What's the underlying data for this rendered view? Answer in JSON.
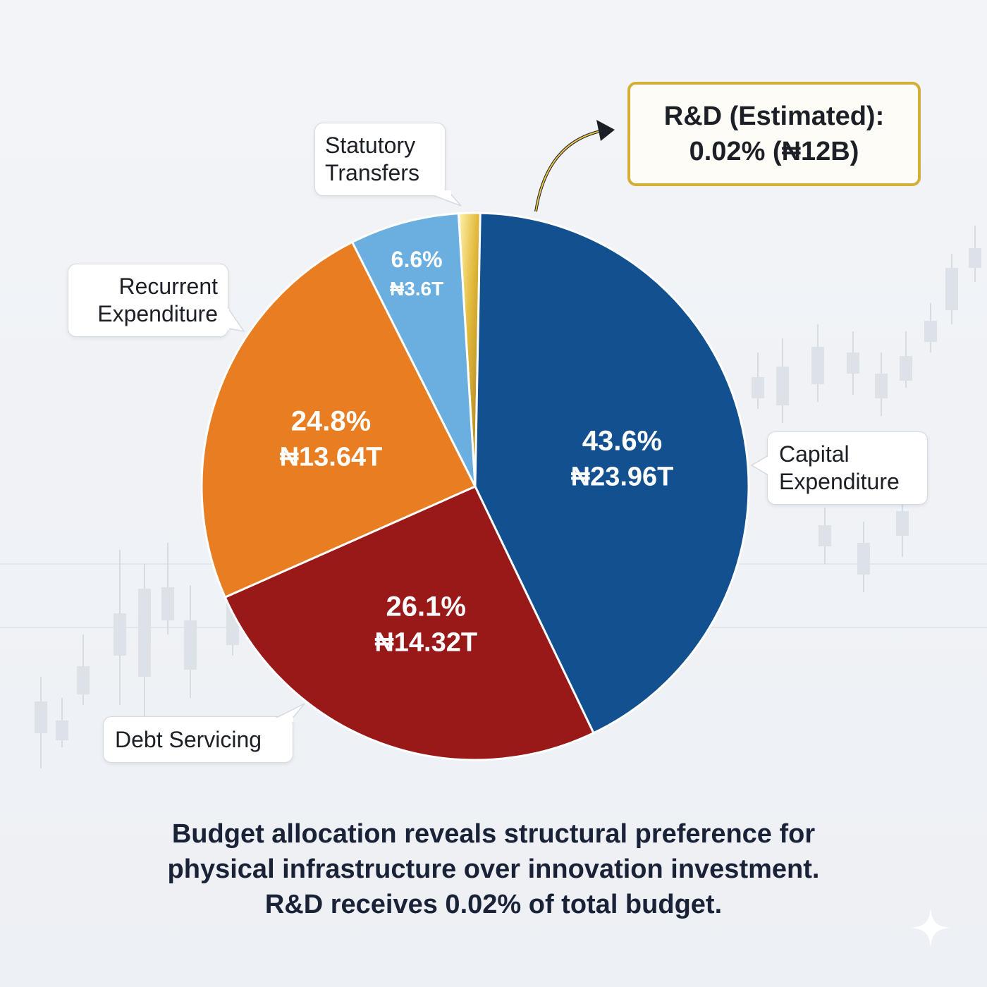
{
  "chart_data": {
    "type": "pie",
    "slices": [
      {
        "label": "Capital Expenditure",
        "label_lines": [
          "Capital",
          "Expenditure"
        ],
        "percent": 43.6,
        "percent_label": "43.6%",
        "value_label": "₦23.96T",
        "color": "#12508f"
      },
      {
        "label": "Debt Servicing",
        "label_lines": [
          "Debt Servicing"
        ],
        "percent": 26.1,
        "percent_label": "26.1%",
        "value_label": "₦14.32T",
        "color": "#991818"
      },
      {
        "label": "Recurrent Expenditure",
        "label_lines": [
          "Recurrent",
          "Expenditure"
        ],
        "percent": 24.8,
        "percent_label": "24.8%",
        "value_label": "₦13.64T",
        "color": "#e87d22"
      },
      {
        "label": "Statutory Transfers",
        "label_lines": [
          "Statutory",
          "Transfers"
        ],
        "percent": 6.6,
        "percent_label": "6.6%",
        "value_label": "₦3.6T",
        "color": "#6aafe0"
      },
      {
        "label": "R&D (Estimated)",
        "percent": 0.02,
        "value_label": "₦12B",
        "color": "#d4af37"
      }
    ],
    "highlight": {
      "line1": "R&D (Estimated):",
      "line2": "0.02% (₦12B)"
    },
    "caption": [
      "Budget allocation reveals structural preference for",
      "physical infrastructure over innovation investment.",
      "R&D receives 0.02% of total budget."
    ]
  }
}
